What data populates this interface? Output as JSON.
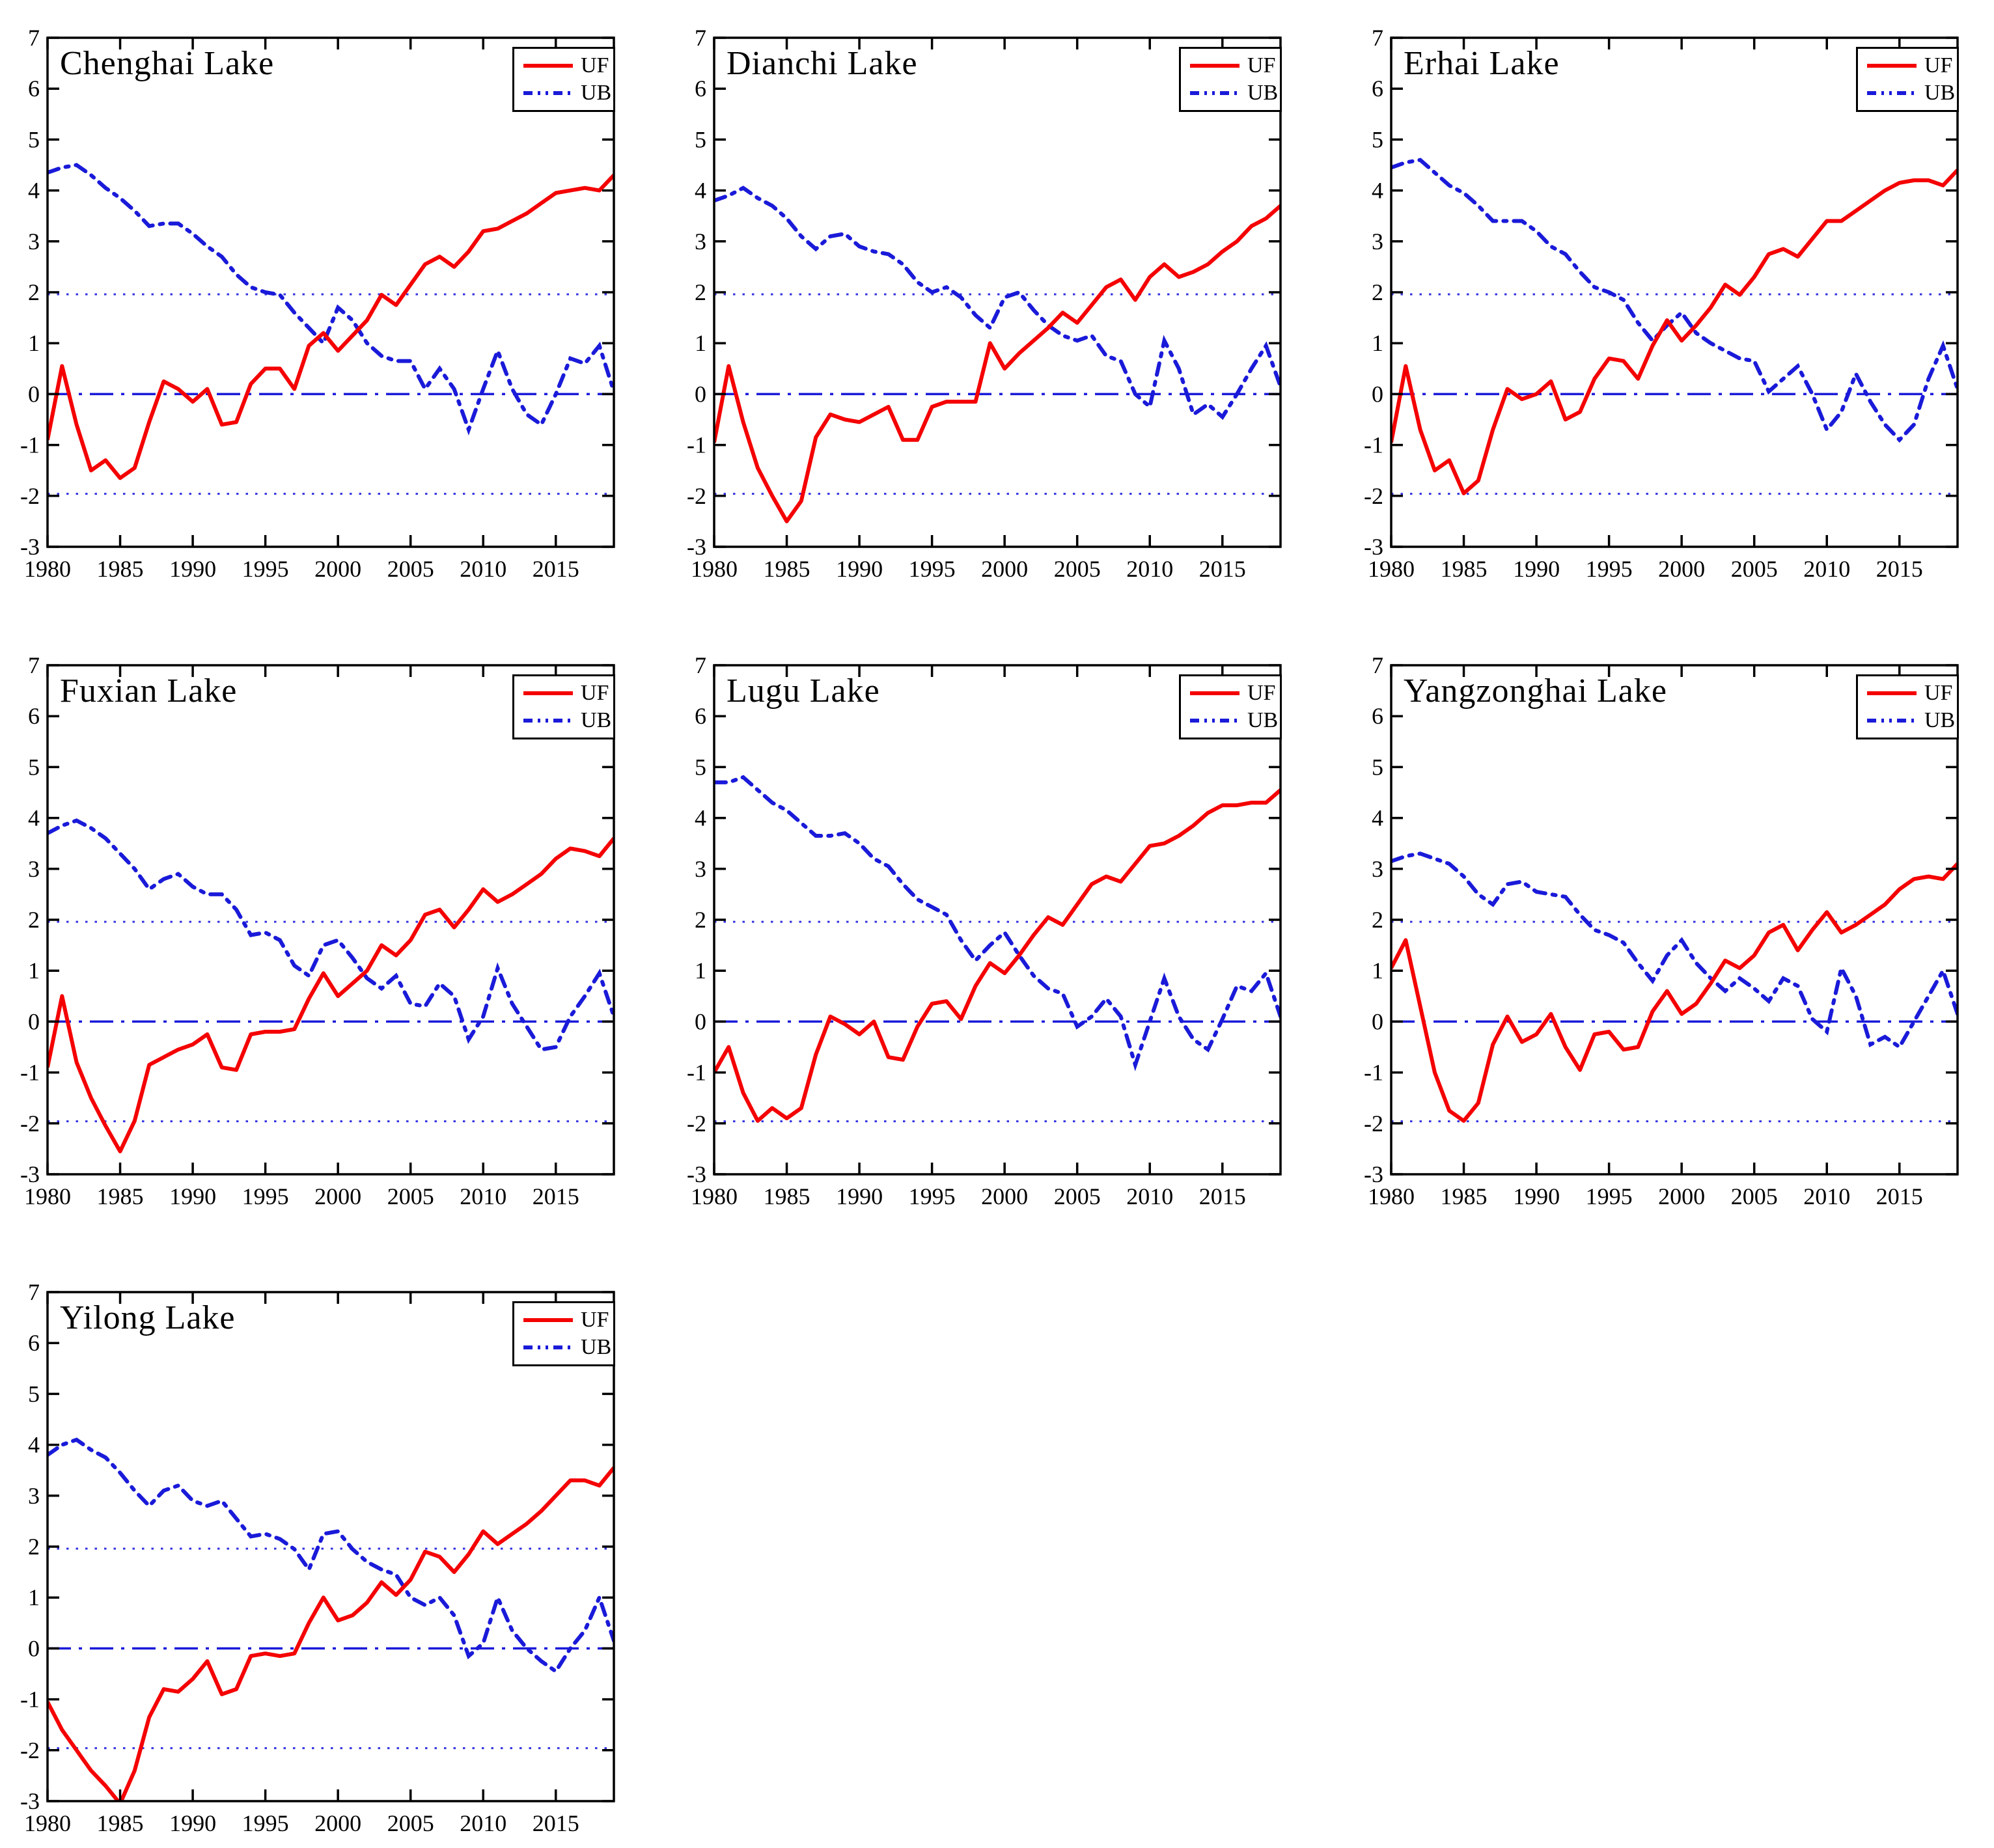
{
  "figure": {
    "background": "#ffffff"
  },
  "colors": {
    "uf": "#f40000",
    "ub": "#1a1ad9",
    "threshold": "#3333e0",
    "zero": "#1a1ad9",
    "axis": "#000000"
  },
  "legend": {
    "uf_label": "UF",
    "ub_label": "UB"
  },
  "axis": {
    "xlim": [
      1980,
      2019
    ],
    "ylim": [
      -3,
      7
    ],
    "xticks": [
      1980,
      1985,
      1990,
      1995,
      2000,
      2005,
      2010,
      2015
    ],
    "yticks": [
      7,
      6,
      5,
      4,
      3,
      2,
      1,
      0,
      -1,
      -2,
      -3
    ],
    "thresholds": [
      1.96,
      -1.96
    ],
    "grid": false,
    "legend_position": "top-right"
  },
  "years": [
    1980,
    1981,
    1982,
    1983,
    1984,
    1985,
    1986,
    1987,
    1988,
    1989,
    1990,
    1991,
    1992,
    1993,
    1994,
    1995,
    1996,
    1997,
    1998,
    1999,
    2000,
    2001,
    2002,
    2003,
    2004,
    2005,
    2006,
    2007,
    2008,
    2009,
    2010,
    2011,
    2012,
    2013,
    2014,
    2015,
    2016,
    2017,
    2018,
    2019
  ],
  "chart_data": [
    {
      "type": "line",
      "title": "Chenghai Lake",
      "series": [
        {
          "name": "UF",
          "values": [
            -0.9,
            0.55,
            -0.6,
            -1.5,
            -1.3,
            -1.65,
            -1.45,
            -0.55,
            0.25,
            0.1,
            -0.15,
            0.1,
            -0.6,
            -0.55,
            0.2,
            0.5,
            0.5,
            0.1,
            0.95,
            1.2,
            0.85,
            1.15,
            1.45,
            1.95,
            1.75,
            2.15,
            2.55,
            2.7,
            2.5,
            2.8,
            3.2,
            3.25,
            3.4,
            3.55,
            3.75,
            3.95,
            4.0,
            4.05,
            4.0,
            4.3
          ]
        },
        {
          "name": "UB",
          "values": [
            4.35,
            4.45,
            4.5,
            4.3,
            4.05,
            3.85,
            3.6,
            3.3,
            3.35,
            3.35,
            3.15,
            2.9,
            2.7,
            2.35,
            2.1,
            2.0,
            1.95,
            1.6,
            1.3,
            1.0,
            1.7,
            1.45,
            1.0,
            0.75,
            0.65,
            0.65,
            0.1,
            0.5,
            0.1,
            -0.7,
            0.1,
            0.85,
            0.1,
            -0.4,
            -0.6,
            0.0,
            0.7,
            0.6,
            0.95,
            0.05
          ]
        }
      ]
    },
    {
      "type": "line",
      "title": "Dianchi Lake",
      "series": [
        {
          "name": "UF",
          "values": [
            -0.95,
            0.55,
            -0.55,
            -1.45,
            -2.0,
            -2.5,
            -2.1,
            -0.85,
            -0.4,
            -0.5,
            -0.55,
            -0.4,
            -0.25,
            -0.9,
            -0.9,
            -0.25,
            -0.15,
            -0.15,
            -0.15,
            1.0,
            0.5,
            0.8,
            1.05,
            1.3,
            1.6,
            1.4,
            1.75,
            2.1,
            2.25,
            1.85,
            2.3,
            2.55,
            2.3,
            2.4,
            2.55,
            2.8,
            3.0,
            3.3,
            3.45,
            3.7
          ]
        },
        {
          "name": "UB",
          "values": [
            3.8,
            3.9,
            4.05,
            3.85,
            3.7,
            3.45,
            3.1,
            2.85,
            3.1,
            3.15,
            2.9,
            2.8,
            2.75,
            2.55,
            2.2,
            2.0,
            2.1,
            1.9,
            1.55,
            1.3,
            1.9,
            2.0,
            1.65,
            1.35,
            1.15,
            1.05,
            1.15,
            0.75,
            0.65,
            0.0,
            -0.25,
            1.05,
            0.5,
            -0.4,
            -0.2,
            -0.45,
            0.0,
            0.5,
            0.95,
            0.15
          ]
        }
      ]
    },
    {
      "type": "line",
      "title": "Erhai Lake",
      "series": [
        {
          "name": "UF",
          "values": [
            -0.95,
            0.55,
            -0.7,
            -1.5,
            -1.3,
            -1.95,
            -1.7,
            -0.7,
            0.1,
            -0.1,
            0.0,
            0.25,
            -0.5,
            -0.35,
            0.3,
            0.7,
            0.65,
            0.3,
            0.95,
            1.45,
            1.05,
            1.35,
            1.7,
            2.15,
            1.95,
            2.3,
            2.75,
            2.85,
            2.7,
            3.05,
            3.4,
            3.4,
            3.6,
            3.8,
            4.0,
            4.15,
            4.2,
            4.2,
            4.1,
            4.4
          ]
        },
        {
          "name": "UB",
          "values": [
            4.45,
            4.55,
            4.6,
            4.35,
            4.1,
            3.95,
            3.7,
            3.4,
            3.4,
            3.4,
            3.2,
            2.9,
            2.75,
            2.4,
            2.1,
            2.0,
            1.85,
            1.4,
            1.05,
            1.35,
            1.6,
            1.2,
            1.0,
            0.85,
            0.7,
            0.65,
            0.05,
            0.3,
            0.55,
            0.0,
            -0.7,
            -0.35,
            0.4,
            -0.15,
            -0.6,
            -0.9,
            -0.6,
            0.3,
            0.95,
            0.1
          ]
        }
      ]
    },
    {
      "type": "line",
      "title": "Fuxian Lake",
      "series": [
        {
          "name": "UF",
          "values": [
            -0.9,
            0.5,
            -0.8,
            -1.5,
            -2.05,
            -2.55,
            -1.95,
            -0.85,
            -0.7,
            -0.55,
            -0.45,
            -0.25,
            -0.9,
            -0.95,
            -0.25,
            -0.2,
            -0.2,
            -0.15,
            0.45,
            0.95,
            0.5,
            0.75,
            1.0,
            1.5,
            1.3,
            1.6,
            2.1,
            2.2,
            1.85,
            2.2,
            2.6,
            2.35,
            2.5,
            2.7,
            2.9,
            3.2,
            3.4,
            3.35,
            3.25,
            3.6
          ]
        },
        {
          "name": "UB",
          "values": [
            3.7,
            3.85,
            3.95,
            3.8,
            3.6,
            3.3,
            3.0,
            2.6,
            2.8,
            2.9,
            2.65,
            2.5,
            2.5,
            2.2,
            1.7,
            1.75,
            1.6,
            1.1,
            0.9,
            1.5,
            1.6,
            1.25,
            0.85,
            0.65,
            0.9,
            0.35,
            0.3,
            0.75,
            0.5,
            -0.35,
            0.1,
            1.05,
            0.35,
            -0.1,
            -0.55,
            -0.5,
            0.1,
            0.5,
            0.95,
            0.1
          ]
        }
      ]
    },
    {
      "type": "line",
      "title": "Lugu Lake",
      "series": [
        {
          "name": "UF",
          "values": [
            -1.0,
            -0.5,
            -1.4,
            -1.95,
            -1.7,
            -1.9,
            -1.7,
            -0.65,
            0.1,
            -0.05,
            -0.25,
            0.0,
            -0.7,
            -0.75,
            -0.1,
            0.35,
            0.4,
            0.05,
            0.7,
            1.15,
            0.95,
            1.3,
            1.7,
            2.05,
            1.9,
            2.3,
            2.7,
            2.85,
            2.75,
            3.1,
            3.45,
            3.5,
            3.65,
            3.85,
            4.1,
            4.25,
            4.25,
            4.3,
            4.3,
            4.55
          ]
        },
        {
          "name": "UB",
          "values": [
            4.7,
            4.7,
            4.8,
            4.55,
            4.3,
            4.15,
            3.9,
            3.65,
            3.65,
            3.7,
            3.5,
            3.2,
            3.05,
            2.7,
            2.4,
            2.25,
            2.1,
            1.6,
            1.2,
            1.5,
            1.75,
            1.3,
            0.9,
            0.65,
            0.55,
            -0.1,
            0.1,
            0.45,
            0.1,
            -0.85,
            0.0,
            0.85,
            0.1,
            -0.35,
            -0.55,
            0.05,
            0.7,
            0.6,
            0.95,
            0.1
          ]
        }
      ]
    },
    {
      "type": "line",
      "title": "Yangzonghai Lake",
      "series": [
        {
          "name": "UF",
          "values": [
            1.05,
            1.6,
            0.3,
            -1.0,
            -1.75,
            -1.95,
            -1.6,
            -0.45,
            0.1,
            -0.4,
            -0.25,
            0.15,
            -0.5,
            -0.95,
            -0.25,
            -0.2,
            -0.55,
            -0.5,
            0.2,
            0.6,
            0.15,
            0.35,
            0.75,
            1.2,
            1.05,
            1.3,
            1.75,
            1.9,
            1.4,
            1.8,
            2.15,
            1.75,
            1.9,
            2.1,
            2.3,
            2.6,
            2.8,
            2.85,
            2.8,
            3.1
          ]
        },
        {
          "name": "UB",
          "values": [
            3.15,
            3.25,
            3.3,
            3.2,
            3.1,
            2.85,
            2.5,
            2.3,
            2.7,
            2.75,
            2.55,
            2.5,
            2.45,
            2.1,
            1.8,
            1.7,
            1.55,
            1.15,
            0.8,
            1.3,
            1.6,
            1.15,
            0.85,
            0.6,
            0.85,
            0.65,
            0.4,
            0.85,
            0.7,
            0.05,
            -0.2,
            1.05,
            0.5,
            -0.45,
            -0.3,
            -0.5,
            0.0,
            0.5,
            1.0,
            0.15
          ]
        }
      ]
    },
    {
      "type": "line",
      "title": "Yilong Lake",
      "series": [
        {
          "name": "UF",
          "values": [
            -1.05,
            -1.6,
            -2.0,
            -2.4,
            -2.7,
            -3.05,
            -2.4,
            -1.35,
            -0.8,
            -0.85,
            -0.6,
            -0.25,
            -0.9,
            -0.8,
            -0.15,
            -0.1,
            -0.15,
            -0.1,
            0.5,
            1.0,
            0.55,
            0.65,
            0.9,
            1.3,
            1.05,
            1.35,
            1.9,
            1.8,
            1.5,
            1.85,
            2.3,
            2.05,
            2.25,
            2.45,
            2.7,
            3.0,
            3.3,
            3.3,
            3.2,
            3.55
          ]
        },
        {
          "name": "UB",
          "values": [
            3.8,
            4.0,
            4.1,
            3.9,
            3.75,
            3.45,
            3.1,
            2.8,
            3.1,
            3.2,
            2.9,
            2.8,
            2.9,
            2.55,
            2.2,
            2.25,
            2.15,
            1.95,
            1.55,
            2.25,
            2.3,
            1.95,
            1.7,
            1.55,
            1.45,
            1.0,
            0.85,
            1.0,
            0.65,
            -0.15,
            0.1,
            1.0,
            0.35,
            0.0,
            -0.25,
            -0.45,
            0.0,
            0.35,
            1.0,
            0.15
          ]
        }
      ]
    }
  ]
}
